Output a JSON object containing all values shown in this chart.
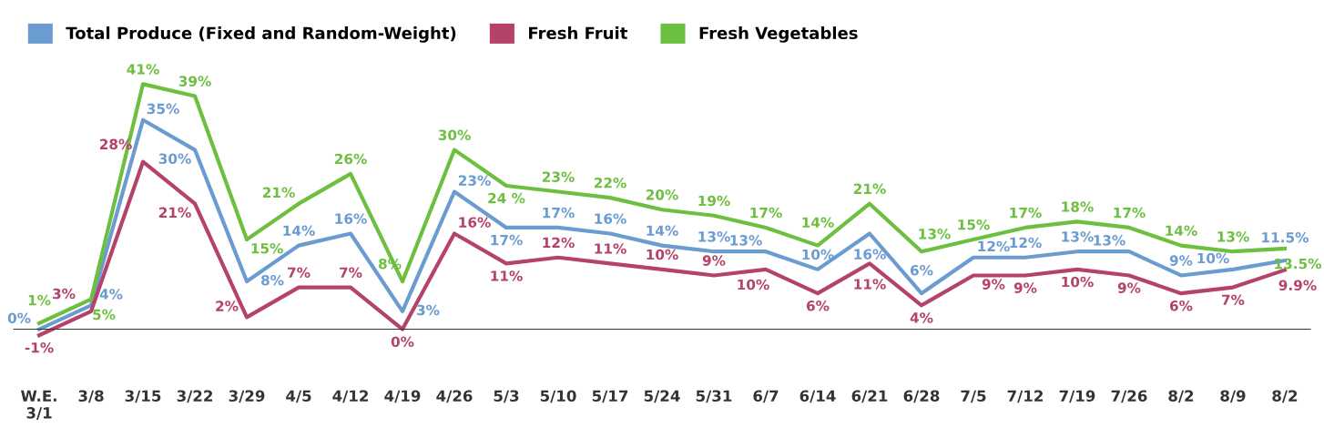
{
  "chart_data": {
    "type": "line",
    "categories": [
      "W.E.\n3/1",
      "3/8",
      "3/15",
      "3/22",
      "3/29",
      "4/5",
      "4/12",
      "4/19",
      "4/26",
      "5/3",
      "5/10",
      "5/17",
      "5/24",
      "5/31",
      "6/7",
      "6/14",
      "6/21",
      "6/28",
      "7/5",
      "7/12",
      "7/19",
      "7/26",
      "8/2",
      "8/9",
      "8/2"
    ],
    "series": [
      {
        "name": "Total Produce (Fixed and Random-Weight)",
        "color": "#6a9bd1",
        "values": [
          0,
          4,
          35,
          30,
          8,
          14,
          16,
          3,
          23,
          17,
          17,
          16,
          14,
          13,
          13,
          10,
          16,
          6,
          12,
          12,
          13,
          13,
          9,
          10,
          11.5
        ],
        "value_labels": [
          "0%",
          "4%",
          "35%",
          "30%",
          "8%",
          "14%",
          "16%",
          "3%",
          "23%",
          "17%",
          "17%",
          "16%",
          "14%",
          "13%",
          "13%",
          "10%",
          "16%",
          "6%",
          "12%",
          "12%",
          "13%",
          "13%",
          "9%",
          "10%",
          "11.5%"
        ]
      },
      {
        "name": "Fresh Fruit",
        "color": "#b5426a",
        "values": [
          -1,
          3,
          28,
          21,
          2,
          7,
          7,
          0,
          16,
          11,
          12,
          11,
          10,
          9,
          10,
          6,
          11,
          4,
          9,
          9,
          10,
          9,
          6,
          7,
          9.9
        ],
        "value_labels": [
          "-1%",
          "3%",
          "28%",
          "21%",
          "2%",
          "7%",
          "7%",
          "0%",
          "16%",
          "11%",
          "12%",
          "11%",
          "10%",
          "9%",
          "10%",
          "6%",
          "11%",
          "4%",
          "9%",
          "9%",
          "10%",
          "9%",
          "6%",
          "7%",
          "9.9%"
        ]
      },
      {
        "name": "Fresh Vegetables",
        "color": "#6cbf3f",
        "values": [
          1,
          5,
          41,
          39,
          15,
          21,
          26,
          8,
          30,
          24,
          23,
          22,
          20,
          19,
          17,
          14,
          21,
          13,
          15,
          17,
          18,
          17,
          14,
          13,
          13.5
        ],
        "value_labels": [
          "1%",
          "5%",
          "41%",
          "39%",
          "15%",
          "21%",
          "26%",
          "8%",
          "30%",
          "24 %",
          "23%",
          "22%",
          "20%",
          "19%",
          "17%",
          "14%",
          "21%",
          "13%",
          "15%",
          "17%",
          "18%",
          "17%",
          "14%",
          "13%",
          "13.5%"
        ]
      }
    ],
    "ref_lines": [
      {
        "axis": "y",
        "value": 0,
        "color": "#333333"
      }
    ],
    "legend": "top left",
    "grid": false,
    "marker": "none",
    "line_style": "solid"
  }
}
